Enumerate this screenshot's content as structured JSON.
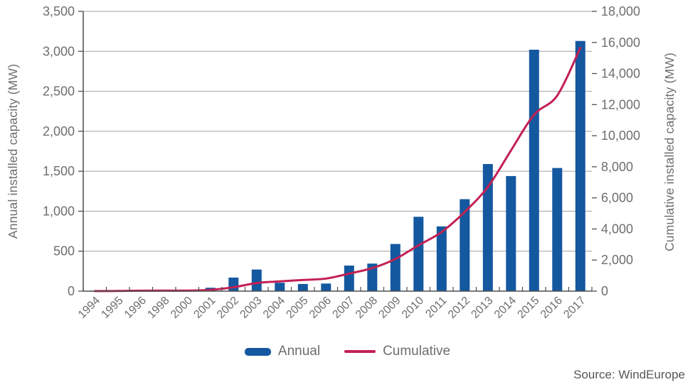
{
  "chart_data": {
    "type": "bar+line",
    "title": "",
    "categories": [
      "1994",
      "1995",
      "1996",
      "1998",
      "2000",
      "2001",
      "2002",
      "2003",
      "2004",
      "2005",
      "2006",
      "2007",
      "2008",
      "2009",
      "2010",
      "2011",
      "2012",
      "2013",
      "2014",
      "2015",
      "2016",
      "2017"
    ],
    "series": [
      {
        "name": "Annual",
        "type": "bar",
        "axis": "left",
        "values": [
          2,
          5,
          17,
          5,
          5,
          43,
          170,
          270,
          105,
          90,
          95,
          320,
          345,
          590,
          930,
          810,
          1150,
          1590,
          1440,
          3020,
          1540,
          3130
        ]
      },
      {
        "name": "Cumulative",
        "type": "line",
        "axis": "right",
        "values": [
          5,
          10,
          27,
          32,
          37,
          80,
          250,
          520,
          625,
          715,
          810,
          1130,
          1480,
          2070,
          2950,
          3800,
          5100,
          6700,
          9050,
          11350,
          12580,
          15650
        ]
      }
    ],
    "xlabel": "",
    "ylabel_left": "Annual installed capacity (MW)",
    "ylabel_right": "Cumulative installed capacity (MW)",
    "left_axis": {
      "min": 0,
      "max": 3500,
      "tick_step": 500,
      "tick_labels": [
        "0",
        "500",
        "1,000",
        "1,500",
        "2,000",
        "2,500",
        "3,000",
        "3,500"
      ]
    },
    "right_axis": {
      "min": 0,
      "max": 18000,
      "tick_step": 2000,
      "tick_labels": [
        "0",
        "2,000",
        "4,000",
        "6,000",
        "8,000",
        "10,000",
        "12,000",
        "14,000",
        "16,000",
        "18,000"
      ]
    },
    "grid": true,
    "legend_position": "bottom",
    "legend": {
      "annual": "Annual",
      "cumulative": "Cumulative"
    }
  },
  "source": "Source: WindEurope",
  "colors": {
    "bar": "#14589f",
    "line": "#c32053",
    "grid": "#a0a0a0",
    "axis": "#4d4e50",
    "text": "#6d6e71"
  }
}
